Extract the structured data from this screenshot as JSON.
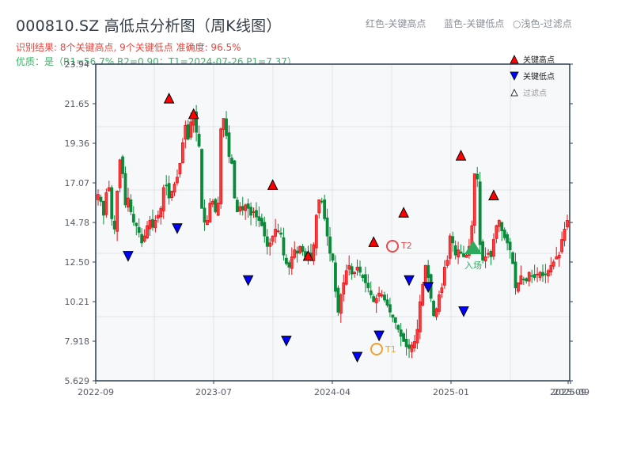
{
  "header": {
    "title": "000810.SZ 高低点分析图（周K线图）",
    "result_line": "识别结果: 8个关键高点, 9个关键低点  准确度: 96.5%",
    "quality_line": "优质：是（R1=56.7%  R2=0.90；T1=2024-07-26 P1=7.37）"
  },
  "top_legend": {
    "red": "红色-关键高点",
    "blue": "蓝色-关键低点",
    "filtered": "○浅色-过滤点"
  },
  "legend": {
    "items": [
      {
        "label": "关键高点",
        "marker": "triangle-up",
        "color": "#ff0000"
      },
      {
        "label": "关键低点",
        "marker": "triangle-down",
        "color": "#0000ff"
      },
      {
        "label": "过滤点",
        "marker": "triangle-up-outline",
        "color": "#ffffff"
      }
    ]
  },
  "annotations": {
    "t1_label": "T1",
    "t2_label": "T2",
    "entry_label": "入场"
  },
  "colors": {
    "up": "#e0161b",
    "down": "#0a8a3a",
    "high_marker": "#ff0000",
    "low_marker": "#0000ff",
    "t1": "#f0a030",
    "t2": "#e84a4a",
    "entry": "#2eaa5e",
    "plot_bg": "#f7f8fa",
    "grid": "#e1e4e8",
    "axis": "#2c3e50"
  },
  "chart_data": {
    "type": "candlestick",
    "title": "000810.SZ 高低点分析图（周K线图）",
    "xlabel": "",
    "ylabel": "",
    "ylim": [
      5.629,
      23.94
    ],
    "y_ticks": [
      "5.629",
      "7.918",
      "10.21",
      "12.50",
      "14.78",
      "17.07",
      "19.36",
      "21.65",
      "23.94"
    ],
    "x_ticks": [
      "2022-09",
      "2023-07",
      "2024-04",
      "2025-01",
      "2025-09"
    ],
    "x_tick_overlap_label": "2025-09",
    "grid": true,
    "legend_position": "upper right",
    "closes": [
      16.4,
      16.0,
      15.2,
      16.5,
      16.8,
      15.0,
      14.4,
      16.6,
      18.4,
      17.6,
      15.8,
      16.2,
      15.4,
      14.8,
      14.6,
      14.2,
      13.6,
      14.0,
      14.6,
      14.9,
      14.5,
      14.9,
      15.2,
      15.6,
      16.8,
      16.9,
      16.2,
      16.6,
      17.0,
      17.4,
      18.2,
      19.4,
      20.4,
      19.6,
      20.6,
      21.1,
      20.0,
      19.2,
      15.6,
      14.8,
      14.9,
      15.9,
      16.0,
      15.4,
      15.9,
      20.2,
      20.8,
      19.8,
      18.6,
      18.2,
      16.2,
      15.4,
      15.7,
      15.5,
      15.8,
      15.6,
      15.2,
      15.4,
      15.1,
      14.9,
      14.6,
      14.0,
      13.4,
      13.6,
      14.0,
      14.4,
      14.3,
      14.1,
      12.9,
      12.4,
      12.2,
      12.8,
      13.2,
      13.0,
      13.4,
      13.1,
      12.8,
      13.0,
      12.6,
      13.5,
      15.2,
      16.1,
      16.0,
      15.0,
      14.0,
      13.0,
      12.6,
      10.8,
      9.6,
      10.6,
      11.3,
      12.0,
      12.3,
      11.8,
      11.9,
      12.2,
      11.9,
      11.6,
      11.3,
      11.0,
      10.6,
      10.2,
      10.4,
      10.7,
      10.6,
      10.3,
      10.0,
      9.6,
      9.3,
      9.0,
      8.6,
      8.2,
      7.9,
      7.6,
      7.5,
      7.7,
      7.9,
      8.6,
      10.2,
      11.2,
      12.3,
      11.6,
      10.4,
      9.4,
      9.8,
      10.6,
      11.0,
      12.2,
      12.6,
      14.0,
      13.6,
      12.9,
      13.2,
      13.0,
      12.8,
      12.9,
      13.4,
      14.6,
      17.6,
      17.3,
      13.5,
      12.6,
      12.8,
      13.0,
      12.8,
      13.8,
      14.6,
      14.9,
      14.3,
      13.9,
      13.6,
      13.2,
      12.4,
      11.0,
      11.3,
      11.7,
      11.5,
      11.4,
      11.9,
      11.7,
      11.6,
      11.8,
      11.9,
      11.7,
      11.8,
      12.0,
      12.3,
      12.5,
      12.8,
      12.9,
      13.8,
      14.4,
      14.9
    ],
    "key_highs": [
      {
        "index": 26,
        "price": 21.6
      },
      {
        "index": 35,
        "price": 20.7
      },
      {
        "index": 64,
        "price": 16.6
      },
      {
        "index": 77,
        "price": 12.5
      },
      {
        "index": 112,
        "price": 15.0
      },
      {
        "index": 133,
        "price": 18.3
      },
      {
        "index": 145,
        "price": 16.0
      },
      {
        "index": 101,
        "price": 13.3
      }
    ],
    "key_lows": [
      {
        "index": 11,
        "price": 13.2
      },
      {
        "index": 29,
        "price": 14.8
      },
      {
        "index": 55,
        "price": 11.8
      },
      {
        "index": 69,
        "price": 8.3
      },
      {
        "index": 95,
        "price": 7.37
      },
      {
        "index": 103,
        "price": 8.6
      },
      {
        "index": 114,
        "price": 11.8
      },
      {
        "index": 121,
        "price": 11.4
      },
      {
        "index": 134,
        "price": 10.0
      }
    ],
    "t1": {
      "date": "2024-07-26",
      "price": 7.37
    },
    "t2": {
      "price": 13.3
    },
    "entry": {
      "price": 13.2
    }
  }
}
